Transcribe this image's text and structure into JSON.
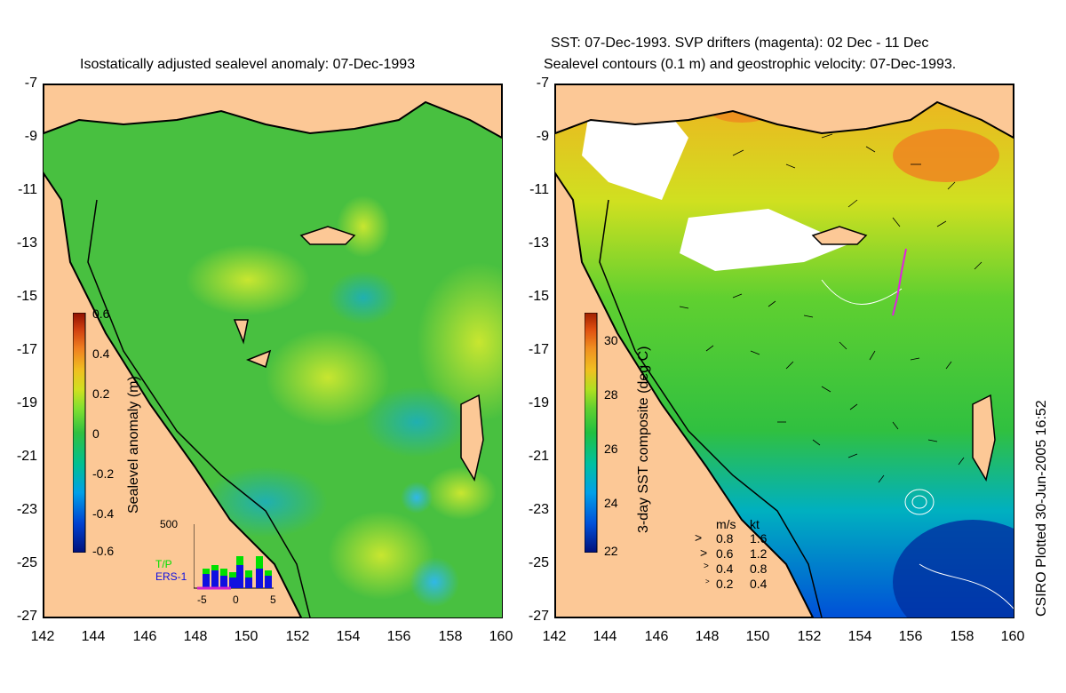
{
  "left_panel": {
    "title": "Isostatically adjusted sealevel anomaly: 07-Dec-1993",
    "colorbar": {
      "label": "Sealevel anomaly (m)",
      "ticks": [
        "0.6",
        "0.4",
        "0.2",
        "0",
        "-0.2",
        "-0.4",
        "-0.6"
      ],
      "colors": [
        "#00107a",
        "#0040d0",
        "#00a0e8",
        "#00c090",
        "#30c040",
        "#80e030",
        "#d0e020",
        "#f0c020",
        "#f08020",
        "#d04010",
        "#901000"
      ]
    },
    "inset": {
      "y_max": "500",
      "x_ticks": [
        "-5",
        "0",
        "5"
      ],
      "series": [
        {
          "name": "T/P",
          "color": "#00e000"
        },
        {
          "name": "ERS-1",
          "color": "#1010e0"
        }
      ]
    }
  },
  "right_panel": {
    "title_line1": "SST: 07-Dec-1993. SVP drifters (magenta): 02 Dec - 11 Dec",
    "title_line2": "Sealevel contours (0.1 m) and geostrophic velocity: 07-Dec-1993.",
    "colorbar": {
      "label": "3-day SST composite (deg C)",
      "ticks": [
        "30",
        "28",
        "26",
        "24",
        "22"
      ],
      "colors": [
        "#00107a",
        "#0050d8",
        "#00a0e8",
        "#00c0a0",
        "#20c040",
        "#60d030",
        "#b0e020",
        "#f0c020",
        "#f09020",
        "#e05010",
        "#a02000"
      ]
    },
    "velocity_legend": {
      "header_ms": "m/s",
      "header_kt": "kt",
      "rows": [
        {
          "ms": "0.8",
          "kt": "1.6"
        },
        {
          "ms": "0.6",
          "kt": "1.2"
        },
        {
          "ms": "0.4",
          "kt": "0.8"
        },
        {
          "ms": "0.2",
          "kt": "0.4"
        }
      ]
    }
  },
  "axes": {
    "lat_ticks": [
      "-7",
      "-9",
      "-11",
      "-13",
      "-15",
      "-17",
      "-19",
      "-21",
      "-23",
      "-25",
      "-27"
    ],
    "lon_ticks": [
      "142",
      "144",
      "146",
      "148",
      "150",
      "152",
      "154",
      "156",
      "158",
      "160"
    ]
  },
  "credit": "CSIRO Plotted 30-Jun-2005 16:52",
  "colors": {
    "land": "#fcc896",
    "ocean_green": "#40c040",
    "coast": "#000000"
  }
}
